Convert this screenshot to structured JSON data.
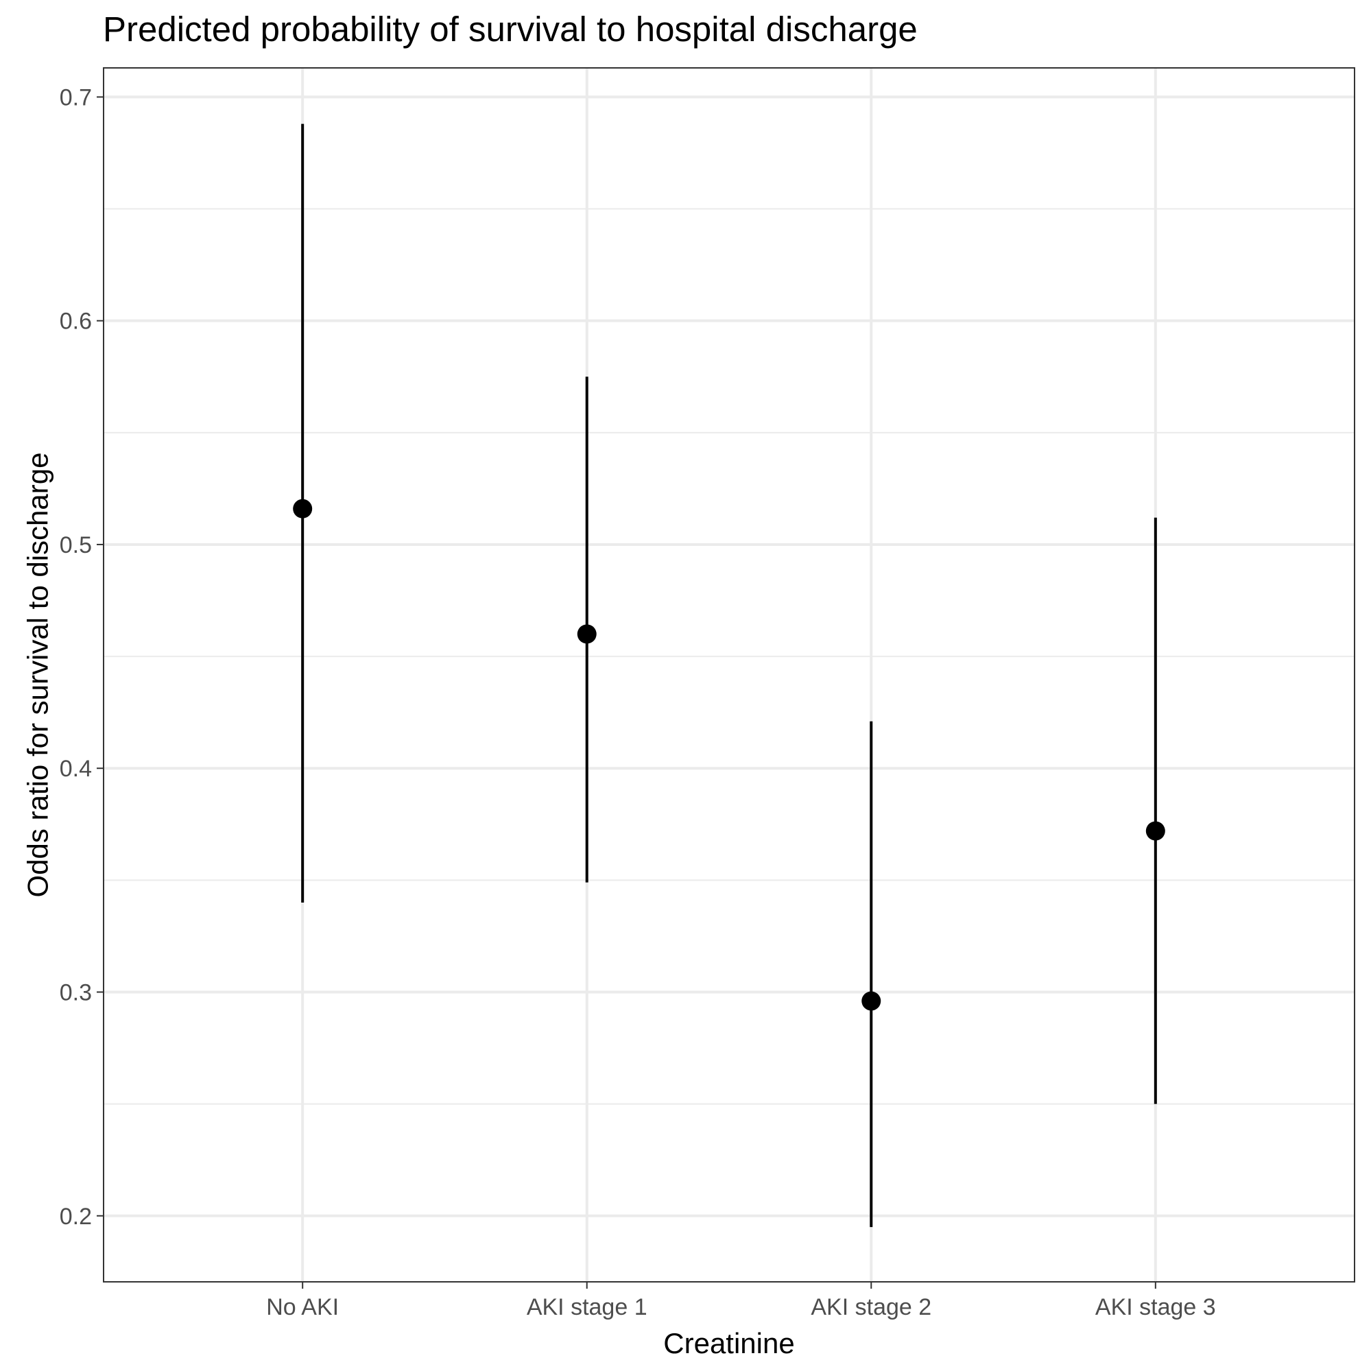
{
  "chart_data": {
    "type": "scatter",
    "subtype": "point-range",
    "title": "Predicted probability of survival to hospital discharge",
    "xlabel": "Creatinine",
    "ylabel": "Odds ratio for survival to discharge",
    "categories": [
      "No AKI",
      "AKI stage 1",
      "AKI stage 2",
      "AKI stage 3"
    ],
    "series": [
      {
        "estimate": [
          0.516,
          0.46,
          0.296,
          0.372
        ],
        "lower": [
          0.34,
          0.349,
          0.195,
          0.25
        ],
        "upper": [
          0.688,
          0.575,
          0.421,
          0.512
        ]
      }
    ],
    "ylim": [
      0.1705,
      0.713
    ],
    "yticks": [
      0.2,
      0.3,
      0.4,
      0.5,
      0.6,
      0.7
    ],
    "ytick_labels": [
      "0.2",
      "0.3",
      "0.4",
      "0.5",
      "0.6",
      "0.7"
    ],
    "grid": true,
    "legend": "none",
    "colors": {
      "point": "#000000",
      "errorbar": "#000000",
      "grid": "#ebebeb",
      "panel_border": "#333333",
      "tick_text": "#4d4d4d"
    }
  }
}
